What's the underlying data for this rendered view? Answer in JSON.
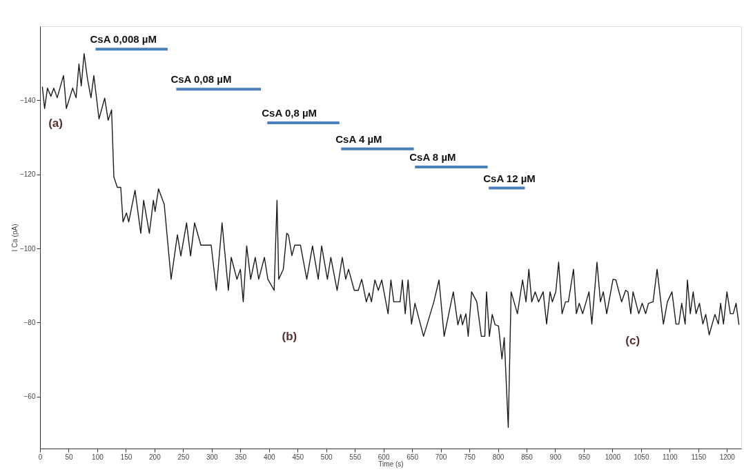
{
  "chart_data": {
    "type": "line",
    "xlabel": "Time (s)",
    "ylabel": "I Ca (pA)",
    "xlim": [
      0,
      1225
    ],
    "ylim": [
      -46,
      -160
    ],
    "xticks": [
      0,
      50,
      100,
      150,
      200,
      250,
      300,
      350,
      400,
      450,
      500,
      550,
      600,
      650,
      700,
      750,
      800,
      850,
      900,
      950,
      1000,
      1050,
      1100,
      1150,
      1200
    ],
    "yticks": [
      -140,
      -120,
      -100,
      -80,
      -60
    ],
    "grid": false,
    "marker": "none",
    "line_style": "solid",
    "series": [
      {
        "color": "#1a1a1a",
        "x": [
          4,
          8,
          13,
          19,
          24,
          30,
          41,
          46,
          57,
          63,
          68,
          72,
          77,
          83,
          89,
          94,
          103,
          113,
          119,
          125,
          129,
          135,
          141,
          145,
          151,
          155,
          166,
          176,
          181,
          191,
          198,
          201,
          207,
          217,
          229,
          240,
          246,
          256,
          263,
          270,
          281,
          299,
          308,
          318,
          329,
          334,
          344,
          350,
          355,
          361,
          368,
          376,
          382,
          392,
          398,
          409,
          414,
          417,
          425,
          431,
          434,
          440,
          445,
          455,
          466,
          476,
          486,
          492,
          502,
          508,
          519,
          528,
          534,
          539,
          549,
          556,
          562,
          570,
          575,
          579,
          585,
          591,
          597,
          608,
          613,
          618,
          629,
          633,
          638,
          643,
          649,
          655,
          670,
          688,
          697,
          706,
          722,
          730,
          735,
          738,
          744,
          748,
          754,
          763,
          771,
          777,
          780,
          785,
          790,
          795,
          801,
          807,
          811,
          818,
          823,
          834,
          843,
          849,
          854,
          859,
          865,
          871,
          879,
          885,
          891,
          895,
          901,
          906,
          912,
          918,
          923,
          932,
          937,
          942,
          948,
          959,
          964,
          973,
          979,
          984,
          990,
          1001,
          1006,
          1016,
          1023,
          1027,
          1032,
          1036,
          1046,
          1052,
          1058,
          1063,
          1071,
          1078,
          1089,
          1096,
          1104,
          1111,
          1116,
          1121,
          1127,
          1131,
          1136,
          1141,
          1146,
          1152,
          1158,
          1163,
          1169,
          1179,
          1185,
          1189,
          1194,
          1200,
          1206,
          1211,
          1216,
          1221
        ],
        "values": [
          -143.7,
          -137.8,
          -143.3,
          -141.1,
          -143.3,
          -140.7,
          -146.7,
          -137.8,
          -143.3,
          -140.7,
          -149.8,
          -143.9,
          -152.6,
          -145.7,
          -140.7,
          -146.7,
          -135,
          -140.6,
          -134.6,
          -137.4,
          -119.3,
          -116.5,
          -116.5,
          -107.2,
          -109.6,
          -107.2,
          -115.7,
          -104.1,
          -113,
          -104.1,
          -113,
          -110,
          -116.1,
          -111.9,
          -91.7,
          -103.7,
          -98,
          -106.9,
          -98,
          -106.9,
          -100.9,
          -100.9,
          -88.7,
          -106.9,
          -88.7,
          -97.6,
          -91.7,
          -94.4,
          -85.6,
          -100.7,
          -91.7,
          -97.6,
          -91.7,
          -97.6,
          -91.7,
          -88.7,
          -113,
          -91.7,
          -94.4,
          -104.1,
          -103.7,
          -98.1,
          -100.9,
          -100.9,
          -91.7,
          -100.7,
          -91.7,
          -100.7,
          -91.7,
          -97.6,
          -88.7,
          -97.6,
          -91.7,
          -94.4,
          -88.7,
          -88.7,
          -91.7,
          -85.6,
          -88,
          -85.6,
          -91.5,
          -88.7,
          -91.5,
          -82.4,
          -91.5,
          -85.6,
          -85.6,
          -91.5,
          -82.4,
          -91.5,
          -79.6,
          -85.2,
          -76.3,
          -85.6,
          -91.5,
          -76.3,
          -88.3,
          -79.4,
          -82.2,
          -79.4,
          -82.4,
          -76.3,
          -88.3,
          -85.6,
          -76.3,
          -76.3,
          -88.3,
          -76.3,
          -82.2,
          -79.4,
          -79.1,
          -70.2,
          -75.9,
          -51.7,
          -88.3,
          -82.4,
          -91.5,
          -85.6,
          -94.4,
          -85.6,
          -88.3,
          -85.6,
          -88.3,
          -79.6,
          -88.3,
          -85.6,
          -88.3,
          -96.3,
          -82.4,
          -85.6,
          -85.6,
          -94.4,
          -82.4,
          -85.2,
          -82.4,
          -88.3,
          -79.6,
          -96.3,
          -85.6,
          -88.3,
          -82.4,
          -91.7,
          -91.5,
          -85.6,
          -88.7,
          -88.3,
          -82.4,
          -88.3,
          -82.4,
          -85.2,
          -82.4,
          -85.2,
          -85.6,
          -94.4,
          -79.6,
          -85.6,
          -88.3,
          -79.6,
          -79.6,
          -85.2,
          -79.6,
          -91.5,
          -82.4,
          -88.3,
          -82.4,
          -85.2,
          -79.6,
          -82.2,
          -76.7,
          -82.2,
          -79.6,
          -85.2,
          -79.6,
          -88.3,
          -82.4,
          -82.4,
          -85.2,
          -79.4
        ]
      },
      {
        "color": "#4a7ebb",
        "x": [
          97,
          223
        ],
        "values": [
          -153.8,
          -153.8
        ]
      },
      {
        "color": "#4a7ebb",
        "x": [
          238,
          386
        ],
        "values": [
          -143,
          -143
        ]
      },
      {
        "color": "#4a7ebb",
        "x": [
          397,
          523
        ],
        "values": [
          -133.9,
          -133.9
        ]
      },
      {
        "color": "#4a7ebb",
        "x": [
          526,
          653
        ],
        "values": [
          -126.9,
          -126.9
        ]
      },
      {
        "color": "#4a7ebb",
        "x": [
          655,
          782
        ],
        "values": [
          -122,
          -122
        ]
      },
      {
        "color": "#4a7ebb",
        "x": [
          784,
          847
        ],
        "values": [
          -116.3,
          -116.3
        ]
      }
    ],
    "annotations": [
      {
        "text": "CsA 0,008 µM",
        "x": 97,
        "y": -153.8
      },
      {
        "text": "CsA 0,08 µM",
        "x": 238,
        "y": -143
      },
      {
        "text": "CsA 0,8 µM",
        "x": 397,
        "y": -133.9
      },
      {
        "text": "CsA 4 µM",
        "x": 526,
        "y": -126.9
      },
      {
        "text": "CsA 8 µM",
        "x": 655,
        "y": -122
      },
      {
        "text": "CsA 12 µM",
        "x": 784,
        "y": -116.3
      },
      "(a)",
      "(b)",
      "(c)"
    ]
  }
}
